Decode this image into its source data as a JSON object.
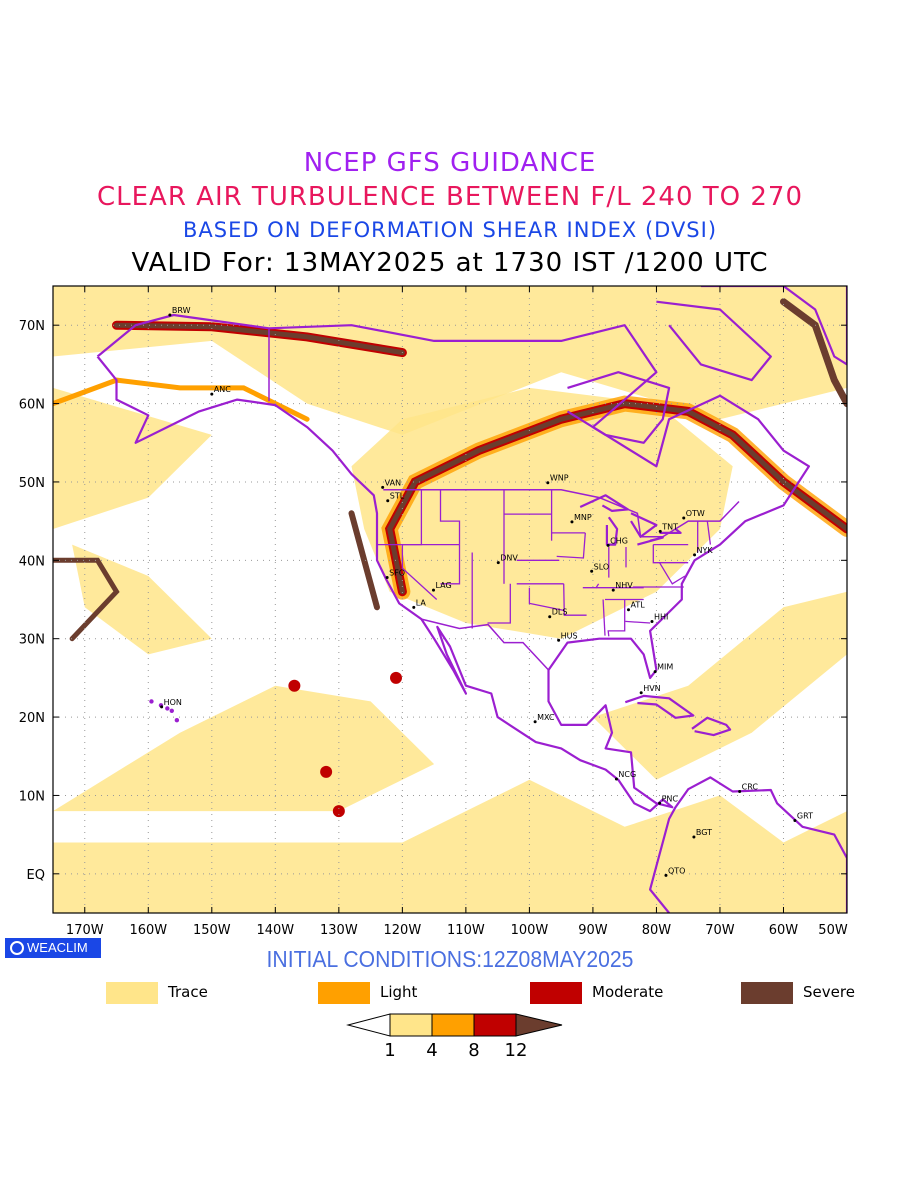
{
  "titles": {
    "line1": "NCEP GFS GUIDANCE",
    "line2": "CLEAR AIR TURBULENCE BETWEEN F/L 240 TO 270",
    "line3": "BASED ON DEFORMATION SHEAR INDEX (DVSI)",
    "line4": "VALID For: 13MAY2025 at 1730 IST /1200 UTC"
  },
  "badge": "WEACLIM",
  "initial_conditions": "INITIAL CONDITIONS:12Z08MAY2025",
  "map": {
    "lon_range": [
      -175,
      -50
    ],
    "lat_range": [
      -5,
      75
    ],
    "lat_ticks": [
      {
        "value": 70,
        "label": "70N"
      },
      {
        "value": 60,
        "label": "60N"
      },
      {
        "value": 50,
        "label": "50N"
      },
      {
        "value": 40,
        "label": "40N"
      },
      {
        "value": 30,
        "label": "30N"
      },
      {
        "value": 20,
        "label": "20N"
      },
      {
        "value": 10,
        "label": "10N"
      },
      {
        "value": 0,
        "label": "EQ"
      }
    ],
    "lon_ticks": [
      {
        "value": -170,
        "label": "170W"
      },
      {
        "value": -160,
        "label": "160W"
      },
      {
        "value": -150,
        "label": "150W"
      },
      {
        "value": -140,
        "label": "140W"
      },
      {
        "value": -130,
        "label": "130W"
      },
      {
        "value": -120,
        "label": "120W"
      },
      {
        "value": -110,
        "label": "110W"
      },
      {
        "value": -100,
        "label": "100W"
      },
      {
        "value": -90,
        "label": "90W"
      },
      {
        "value": -80,
        "label": "80W"
      },
      {
        "value": -70,
        "label": "70W"
      },
      {
        "value": -60,
        "label": "60W"
      },
      {
        "value": -50,
        "label": "50W"
      }
    ],
    "stations": [
      {
        "code": "BRW",
        "lon": -156.6,
        "lat": 71.3
      },
      {
        "code": "ANC",
        "lon": -150,
        "lat": 61.2
      },
      {
        "code": "VAN",
        "lon": -123.1,
        "lat": 49.3
      },
      {
        "code": "STL",
        "lon": -122.3,
        "lat": 47.6
      },
      {
        "code": "WNP",
        "lon": -97.1,
        "lat": 49.9
      },
      {
        "code": "MNP",
        "lon": -93.3,
        "lat": 44.9
      },
      {
        "code": "OTW",
        "lon": -75.7,
        "lat": 45.4
      },
      {
        "code": "TNT",
        "lon": -79.4,
        "lat": 43.7
      },
      {
        "code": "CHG",
        "lon": -87.6,
        "lat": 41.9
      },
      {
        "code": "NYK",
        "lon": -74.0,
        "lat": 40.7
      },
      {
        "code": "DNV",
        "lon": -104.9,
        "lat": 39.7
      },
      {
        "code": "SFO",
        "lon": -122.4,
        "lat": 37.8
      },
      {
        "code": "SLO",
        "lon": -90.2,
        "lat": 38.6
      },
      {
        "code": "LAG",
        "lon": -115.1,
        "lat": 36.2
      },
      {
        "code": "NHV",
        "lon": -86.8,
        "lat": 36.2
      },
      {
        "code": "LA",
        "lon": -118.2,
        "lat": 34.0
      },
      {
        "code": "ATL",
        "lon": -84.4,
        "lat": 33.7
      },
      {
        "code": "DLS",
        "lon": -96.8,
        "lat": 32.8
      },
      {
        "code": "HHI",
        "lon": -80.7,
        "lat": 32.2
      },
      {
        "code": "HUS",
        "lon": -95.4,
        "lat": 29.8
      },
      {
        "code": "MIM",
        "lon": -80.2,
        "lat": 25.8
      },
      {
        "code": "HVN",
        "lon": -82.4,
        "lat": 23.1
      },
      {
        "code": "HON",
        "lon": -157.9,
        "lat": 21.3
      },
      {
        "code": "MXC",
        "lon": -99.1,
        "lat": 19.4
      },
      {
        "code": "NCG",
        "lon": -86.3,
        "lat": 12.1
      },
      {
        "code": "CRC",
        "lon": -66.9,
        "lat": 10.5
      },
      {
        "code": "PNC",
        "lon": -79.5,
        "lat": 9.0
      },
      {
        "code": "GRT",
        "lon": -58.2,
        "lat": 6.8
      },
      {
        "code": "BGT",
        "lon": -74.1,
        "lat": 4.7
      },
      {
        "code": "QTO",
        "lon": -78.5,
        "lat": -0.2
      }
    ]
  },
  "legend": {
    "items": [
      {
        "label": "Trace",
        "color": "#ffe58a"
      },
      {
        "label": "Light",
        "color": "#ffa000"
      },
      {
        "label": "Moderate",
        "color": "#c00000"
      },
      {
        "label": "Severe",
        "color": "#6b3d2e"
      }
    ],
    "colorbar_ticks": [
      "1",
      "4",
      "8",
      "12"
    ]
  },
  "colors": {
    "coastline": "#9b1fd0",
    "trace": "#ffe58a",
    "light": "#ffa000",
    "moderate": "#c00000",
    "severe": "#6b3d2e"
  }
}
